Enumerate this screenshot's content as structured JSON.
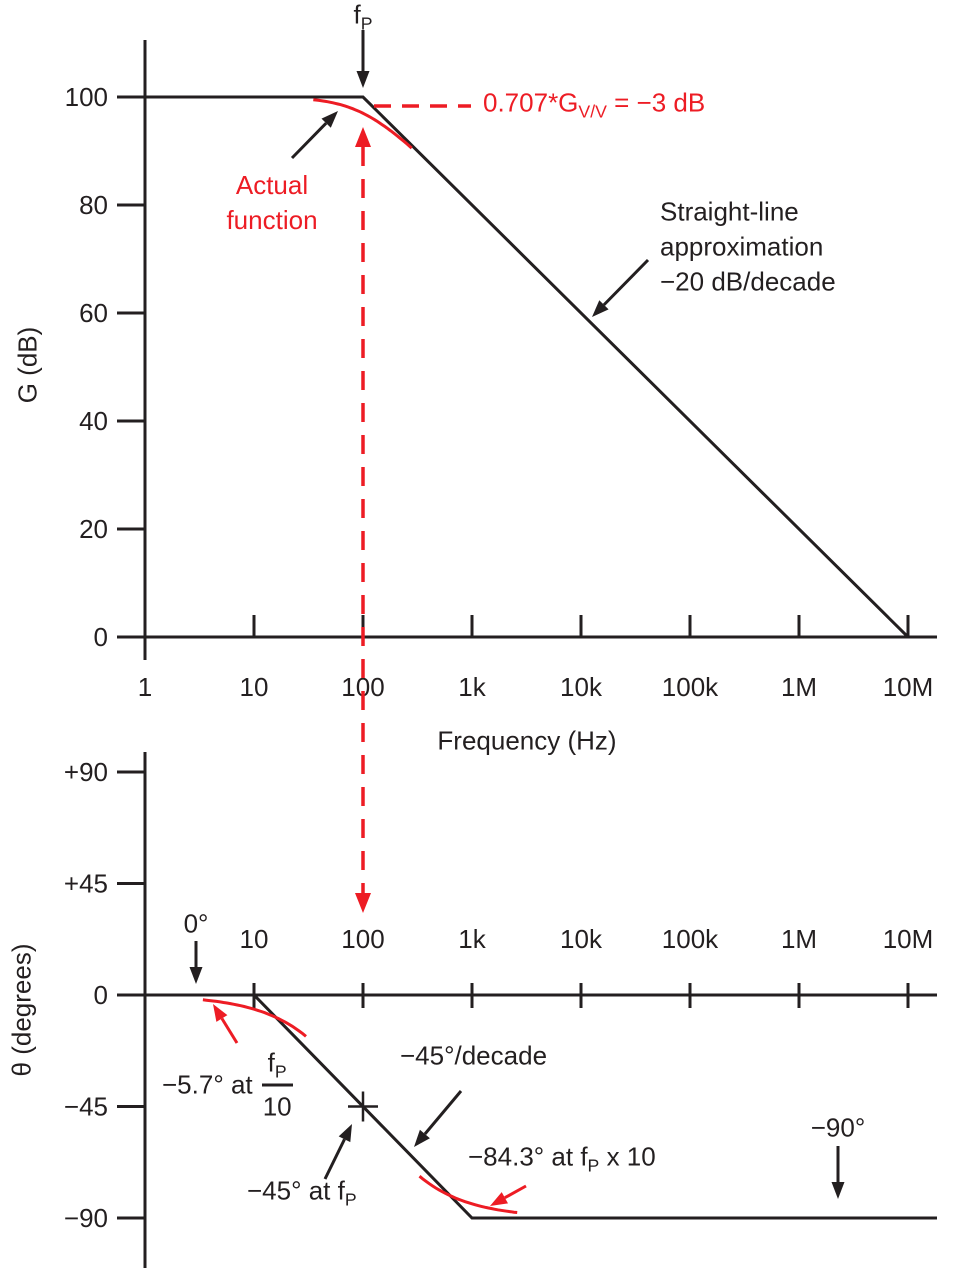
{
  "colors": {
    "ink": "#231f20",
    "red": "#ed1c24",
    "background": "#ffffff"
  },
  "chart_data": [
    {
      "id": "gain",
      "type": "line",
      "xlabel": "Frequency (Hz)",
      "ylabel": "G (dB)",
      "x_scale": "log",
      "xlim": [
        1,
        10000000
      ],
      "ylim": [
        0,
        100
      ],
      "x_ticks": [
        1,
        10,
        100,
        1000,
        10000,
        100000,
        1000000,
        10000000
      ],
      "x_tick_labels": [
        "1",
        "10",
        "100",
        "1k",
        "10k",
        "100k",
        "1M",
        "10M"
      ],
      "y_ticks": [
        100,
        80,
        60,
        40,
        20,
        0
      ],
      "y_tick_labels": [
        "100",
        "80",
        "60",
        "40",
        "20",
        "0"
      ],
      "grid": false,
      "pole_hz": 100,
      "dc_gain_db": 100,
      "series": [
        {
          "name": "Straight-line approximation −20 dB/decade",
          "color": "ink",
          "x": [
            1,
            100,
            10000000
          ],
          "y": [
            100,
            100,
            0
          ]
        },
        {
          "name": "Actual function",
          "color": "red",
          "x": [
            35,
            100,
            280
          ],
          "y": [
            99.5,
            97,
            89.5
          ]
        }
      ],
      "annotations": [
        "fP pole at 100 Hz",
        "0.707*G_V/V = −3 dB at fP"
      ]
    },
    {
      "id": "phase",
      "type": "line",
      "ylabel": "θ (degrees)",
      "x_scale": "log",
      "xlim": [
        1,
        10000000
      ],
      "ylim": [
        -90,
        90
      ],
      "x_ticks": [
        10,
        100,
        1000,
        10000,
        100000,
        1000000,
        10000000
      ],
      "x_tick_labels": [
        "10",
        "100",
        "1k",
        "10k",
        "100k",
        "1M",
        "10M"
      ],
      "y_ticks": [
        90,
        45,
        0,
        -45,
        -90
      ],
      "y_tick_labels": [
        "+90",
        "+45",
        "0",
        "−45",
        "−90"
      ],
      "grid": false,
      "pole_hz": 100,
      "series": [
        {
          "name": "Straight-line approximation −45°/decade",
          "color": "ink",
          "x": [
            1,
            10,
            1000,
            10000000
          ],
          "y": [
            0,
            0,
            -90,
            -90
          ]
        },
        {
          "name": "Actual function",
          "color": "red",
          "x": [
            10,
            100,
            1000
          ],
          "y": [
            -5.7,
            -45,
            -84.3
          ]
        }
      ],
      "annotations": [
        "0° below fP/10",
        "−5.7° at fP/10",
        "−45° at fP",
        "−84.3° at fP x 10",
        "−90° above fP x 10"
      ]
    }
  ],
  "labels": {
    "pole_marker": {
      "base": "f",
      "sub": "P"
    },
    "minus3db": {
      "pre": "0.707*G",
      "sub": "V/V",
      "post": " = −3 dB"
    },
    "actual_function": [
      "Actual",
      "function"
    ],
    "straight_line": [
      "Straight-line",
      "approximation",
      "−20 dB/decade"
    ],
    "zero_deg": "0°",
    "minus57": {
      "pre": "−5.7° at",
      "num_base": "f",
      "num_sub": "P",
      "den": "10"
    },
    "phase_slope": "−45°/decade",
    "minus45": {
      "pre": "−45° at f",
      "sub": "P"
    },
    "minus843": {
      "pre": "−84.3° at f",
      "sub": "P",
      "post": " x 10"
    },
    "minus90": "−90°"
  }
}
